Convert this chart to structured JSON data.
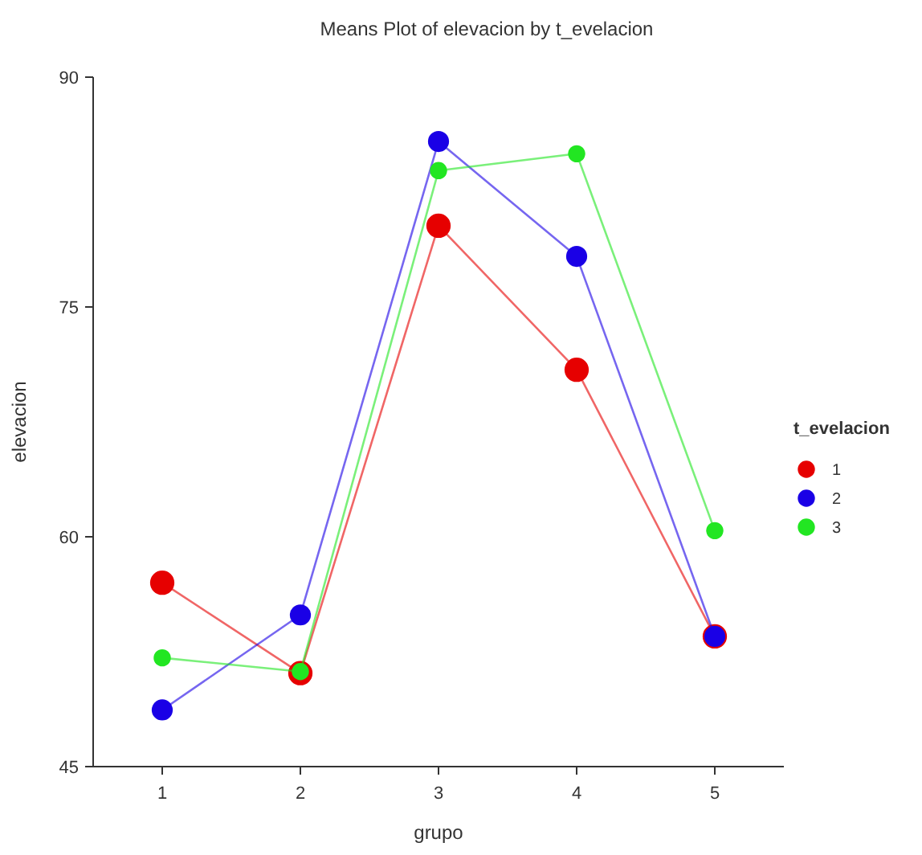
{
  "chart_data": {
    "type": "line",
    "title": "Means Plot of elevacion by t_evelacion",
    "xlabel": "grupo",
    "ylabel": "elevacion",
    "legend_title": "t_evelacion",
    "categories": [
      "1",
      "2",
      "3",
      "4",
      "5"
    ],
    "series": [
      {
        "name": "1",
        "color": "#e60000",
        "values": [
          57.0,
          51.1,
          80.3,
          70.9,
          53.5
        ]
      },
      {
        "name": "2",
        "color": "#1a00e6",
        "values": [
          48.7,
          54.9,
          85.8,
          78.3,
          53.5
        ]
      },
      {
        "name": "3",
        "color": "#22e622",
        "values": [
          52.1,
          51.2,
          83.9,
          85.0,
          60.4
        ]
      }
    ],
    "ylim": [
      45,
      90
    ],
    "yticks": [
      45,
      60,
      75,
      90
    ],
    "marker": "circle",
    "legend": "right",
    "grid": false
  }
}
